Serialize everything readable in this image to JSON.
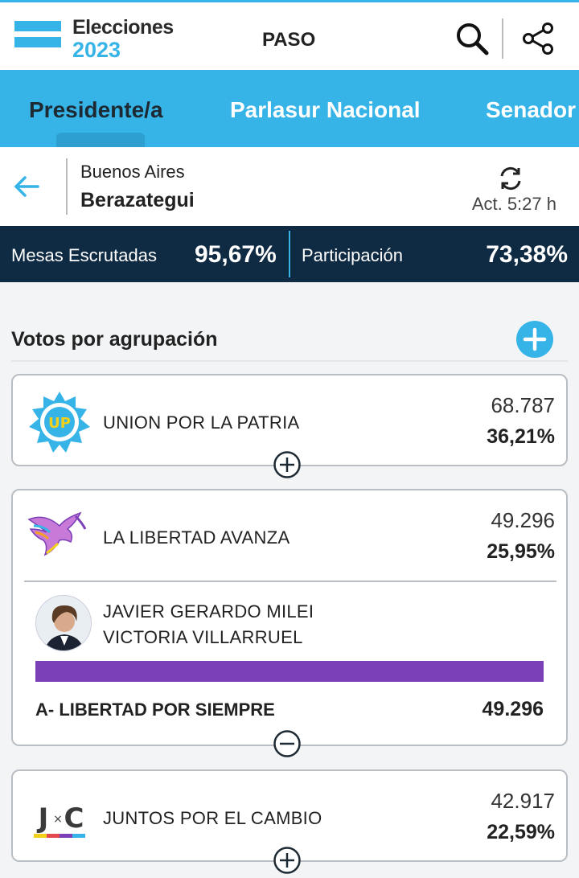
{
  "header": {
    "logo_line1": "Elecciones",
    "logo_line2": "2023",
    "election_type": "PASO",
    "search_icon": "search-icon",
    "share_icon": "share-icon"
  },
  "tabs": [
    {
      "label": "Presidente/a",
      "active": true
    },
    {
      "label": "Parlasur Nacional",
      "active": false
    },
    {
      "label": "Senador",
      "active": false
    }
  ],
  "location": {
    "province": "Buenos Aires",
    "municipality": "Berazategui",
    "update_label": "Act. 5:27 h"
  },
  "stats": {
    "mesas_label": "Mesas Escrutadas",
    "mesas_value": "95,67%",
    "participacion_label": "Participación",
    "participacion_value": "73,38%"
  },
  "section": {
    "title": "Votos por agrupación"
  },
  "parties": [
    {
      "name": "UNION POR LA PATRIA",
      "logo_text": "UP",
      "votes": "68.787",
      "percent": "36,21%",
      "expanded": false
    },
    {
      "name": "LA LIBERTAD AVANZA",
      "votes": "49.296",
      "percent": "25,95%",
      "expanded": true,
      "candidates": {
        "president": "JAVIER GERARDO MILEI",
        "vice": "VICTORIA VILLARRUEL",
        "list_name": "A- LIBERTAD POR SIEMPRE",
        "list_votes": "49.296",
        "list_share": 1.0,
        "bar_color": "#7b3fb8"
      }
    },
    {
      "name": "JUNTOS POR EL CAMBIO",
      "logo_text_left": "J",
      "logo_text_mid": "×",
      "logo_text_right": "C",
      "votes": "42.917",
      "percent": "22,59%",
      "expanded": false
    }
  ],
  "colors": {
    "accent": "#36b4e8",
    "stats_bg": "#0f2a43",
    "libertad_purple": "#7b3fb8"
  }
}
